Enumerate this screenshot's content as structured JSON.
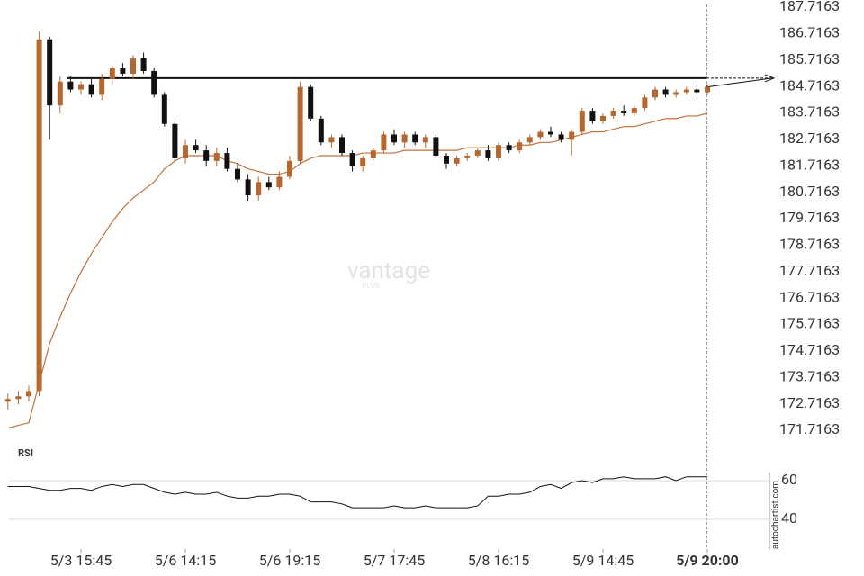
{
  "chart_data": {
    "type": "candlestick",
    "categories": [
      null,
      null,
      null,
      null,
      null,
      null,
      null,
      "5/3 15:45",
      null,
      null,
      null,
      null,
      null,
      null,
      null,
      null,
      null,
      "5/6 14:15",
      null,
      null,
      null,
      null,
      null,
      null,
      null,
      null,
      null,
      "5/6 19:15",
      null,
      null,
      null,
      null,
      null,
      null,
      null,
      null,
      null,
      "5/7 17:45",
      null,
      null,
      null,
      null,
      null,
      null,
      null,
      null,
      null,
      "5/8 16:15",
      null,
      null,
      null,
      null,
      null,
      null,
      null,
      null,
      null,
      "5/9 14:45",
      null,
      null,
      null,
      null,
      null,
      null,
      null,
      null,
      null,
      "5/9 20:00"
    ],
    "open": [
      172.8,
      172.9,
      173.0,
      173.2,
      186.5,
      184.0,
      184.9,
      184.6,
      184.8,
      184.4,
      185.0,
      185.4,
      185.2,
      185.8,
      185.3,
      184.4,
      183.3,
      182.0,
      182.5,
      182.3,
      181.9,
      182.2,
      181.6,
      181.2,
      180.6,
      181.1,
      180.9,
      181.3,
      181.9,
      184.7,
      183.5,
      182.6,
      182.8,
      182.2,
      181.7,
      182.0,
      182.3,
      182.9,
      182.6,
      182.9,
      182.6,
      182.8,
      182.1,
      181.8,
      182.0,
      182.1,
      182.3,
      182.0,
      182.5,
      182.3,
      182.6,
      182.8,
      183.0,
      182.9,
      182.7,
      183.0,
      183.8,
      183.4,
      183.6,
      183.8,
      183.7,
      183.9,
      184.3,
      184.6,
      184.4,
      184.5,
      184.6,
      184.5
    ],
    "high": [
      173.1,
      173.2,
      173.4,
      186.8,
      186.6,
      185.1,
      185.1,
      184.9,
      185.0,
      185.2,
      185.5,
      185.6,
      185.9,
      186.0,
      185.4,
      184.5,
      183.4,
      182.7,
      182.7,
      182.5,
      182.4,
      182.4,
      181.8,
      181.4,
      181.3,
      181.3,
      181.5,
      182.1,
      184.9,
      184.8,
      183.6,
      182.9,
      182.9,
      182.3,
      182.1,
      182.4,
      183.0,
      183.1,
      183.0,
      183.0,
      182.9,
      182.9,
      182.2,
      182.1,
      182.2,
      182.4,
      182.5,
      182.6,
      182.6,
      182.7,
      182.9,
      183.1,
      183.2,
      183.0,
      183.1,
      183.9,
      183.9,
      183.7,
      183.9,
      184.0,
      184.0,
      184.4,
      184.7,
      184.7,
      184.6,
      184.7,
      184.8,
      184.8
    ],
    "low": [
      172.5,
      172.7,
      172.8,
      173.0,
      182.7,
      183.7,
      184.5,
      184.4,
      184.3,
      184.2,
      184.8,
      185.1,
      185.0,
      185.2,
      184.3,
      183.2,
      181.9,
      181.8,
      182.2,
      181.7,
      181.7,
      181.5,
      181.1,
      180.4,
      180.4,
      180.8,
      180.8,
      181.2,
      181.8,
      183.4,
      182.5,
      182.4,
      182.1,
      181.5,
      181.5,
      181.9,
      182.2,
      182.5,
      182.4,
      182.5,
      182.4,
      182.0,
      181.6,
      181.7,
      181.9,
      182.0,
      181.9,
      181.9,
      182.2,
      182.2,
      182.5,
      182.7,
      182.8,
      182.6,
      182.1,
      182.9,
      183.3,
      183.3,
      183.5,
      183.6,
      183.6,
      183.8,
      184.2,
      184.3,
      184.3,
      184.4,
      184.4,
      184.4
    ],
    "close": [
      172.9,
      173.0,
      173.2,
      186.5,
      184.0,
      184.9,
      184.6,
      184.8,
      184.4,
      185.0,
      185.4,
      185.2,
      185.8,
      185.3,
      184.4,
      183.3,
      182.0,
      182.5,
      182.3,
      181.9,
      182.2,
      181.6,
      181.2,
      180.6,
      181.1,
      180.9,
      181.3,
      181.9,
      184.7,
      183.5,
      182.6,
      182.8,
      182.2,
      181.7,
      182.0,
      182.3,
      182.9,
      182.6,
      182.9,
      182.6,
      182.8,
      182.1,
      181.8,
      182.0,
      182.1,
      182.3,
      182.0,
      182.5,
      182.3,
      182.6,
      182.8,
      183.0,
      182.9,
      182.7,
      183.0,
      183.8,
      183.4,
      183.6,
      183.8,
      183.7,
      183.9,
      184.3,
      184.6,
      184.4,
      184.5,
      184.6,
      184.5,
      184.7
    ],
    "up_color": "#b5672e",
    "down_color": "#111111",
    "moving_average": {
      "color": "#c0713a",
      "values": [
        171.8,
        171.9,
        172.0,
        173.5,
        175.0,
        176.0,
        176.9,
        177.7,
        178.4,
        179.0,
        179.6,
        180.1,
        180.5,
        180.8,
        181.1,
        181.6,
        181.9,
        182.1,
        182.1,
        182.1,
        182.1,
        181.9,
        181.8,
        181.6,
        181.5,
        181.4,
        181.4,
        181.5,
        181.8,
        182.0,
        182.1,
        182.1,
        182.1,
        182.1,
        182.2,
        182.2,
        182.2,
        182.2,
        182.3,
        182.3,
        182.3,
        182.3,
        182.3,
        182.3,
        182.4,
        182.4,
        182.4,
        182.4,
        182.4,
        182.5,
        182.5,
        182.6,
        182.6,
        182.7,
        182.8,
        182.9,
        183.0,
        183.0,
        183.1,
        183.2,
        183.2,
        183.3,
        183.4,
        183.5,
        183.5,
        183.6,
        183.6,
        183.7
      ]
    },
    "resistance": 185.03,
    "ylim": [
      171.7163,
      187.7163
    ],
    "yticks": [
      187.7163,
      186.7163,
      185.7163,
      184.7163,
      183.7163,
      182.7163,
      181.7163,
      180.7163,
      179.7163,
      178.7163,
      177.7163,
      176.7163,
      175.7163,
      174.7163,
      173.7163,
      172.7163,
      171.7163
    ],
    "rsi": {
      "label": "RSI",
      "values": [
        57,
        57,
        57,
        56,
        55,
        55,
        56,
        56,
        55,
        57,
        58,
        57,
        58,
        58,
        56,
        54,
        53,
        54,
        53,
        53,
        54,
        52,
        51,
        51,
        52,
        52,
        53,
        53,
        52,
        49,
        49,
        49,
        48,
        46,
        46,
        46,
        46,
        47,
        46,
        46,
        47,
        46,
        46,
        46,
        46,
        47,
        52,
        52,
        53,
        53,
        54,
        57,
        58,
        56,
        59,
        60,
        59,
        61,
        61,
        62,
        61,
        61,
        61,
        62,
        60,
        62,
        62,
        62
      ],
      "ylim": [
        30,
        75
      ],
      "yticks": [
        60,
        40
      ]
    },
    "watermark": "vantage",
    "watermark_sub": "PLUS",
    "source": "autochartist.com"
  }
}
